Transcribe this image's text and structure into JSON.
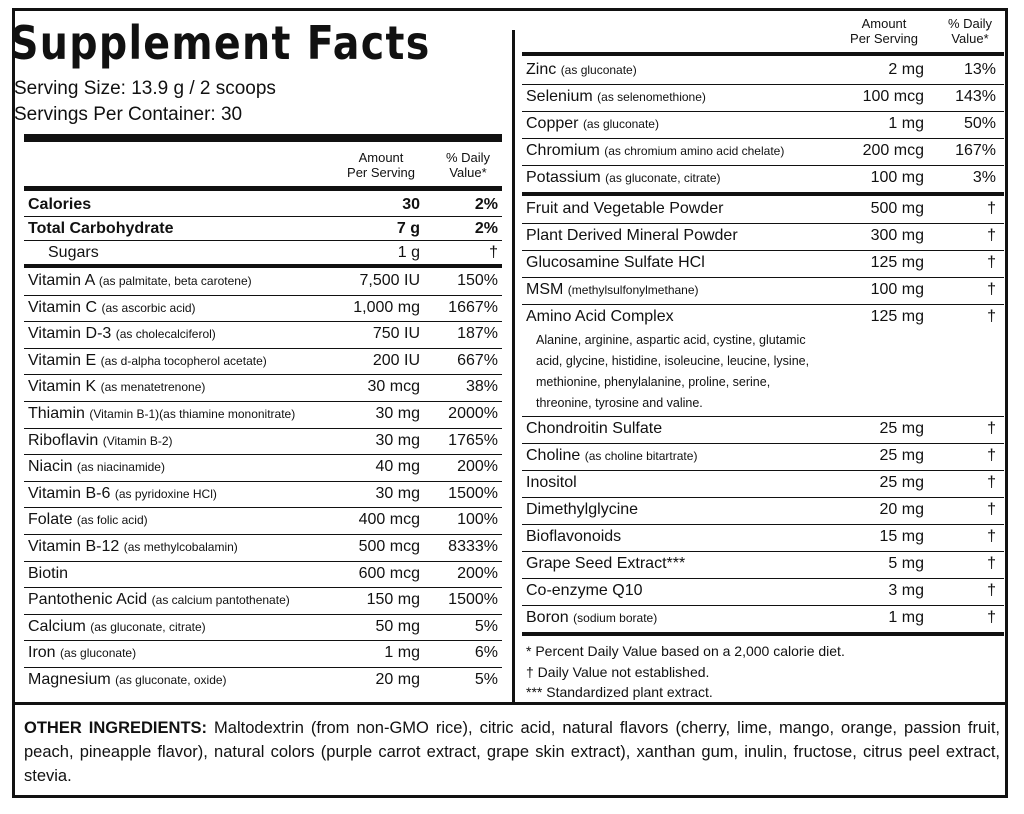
{
  "title": "Supplement Facts",
  "serving_size": "Serving Size: 13.9 g / 2 scoops",
  "servings_per_container": "Servings Per Container: 30",
  "header": {
    "amount": "Amount",
    "per_serving": "Per Serving",
    "daily": "% Daily",
    "value": "Value*"
  },
  "left_top": [
    {
      "name": "Calories",
      "detail": "",
      "amount": "30",
      "dv": "2%"
    },
    {
      "name": "Total Carbohydrate",
      "detail": "",
      "amount": "7 g",
      "dv": "2%"
    },
    {
      "name": "Sugars",
      "detail": "",
      "amount": "1 g",
      "dv": "†"
    }
  ],
  "left_rows": [
    {
      "name": "Vitamin A",
      "detail": "(as palmitate, beta carotene)",
      "amount": "7,500 IU",
      "dv": "150%"
    },
    {
      "name": "Vitamin C",
      "detail": "(as ascorbic acid)",
      "amount": "1,000 mg",
      "dv": "1667%"
    },
    {
      "name": "Vitamin D-3",
      "detail": "(as cholecalciferol)",
      "amount": "750 IU",
      "dv": "187%"
    },
    {
      "name": "Vitamin E",
      "detail": "(as d-alpha tocopherol acetate)",
      "amount": "200 IU",
      "dv": "667%"
    },
    {
      "name": "Vitamin K",
      "detail": "(as menatetrenone)",
      "amount": "30 mcg",
      "dv": "38%"
    },
    {
      "name": "Thiamin",
      "detail": "(Vitamin B-1)(as thiamine mononitrate)",
      "amount": "30 mg",
      "dv": "2000%"
    },
    {
      "name": "Riboflavin",
      "detail": "(Vitamin B-2)",
      "amount": "30 mg",
      "dv": "1765%"
    },
    {
      "name": "Niacin",
      "detail": "(as niacinamide)",
      "amount": "40 mg",
      "dv": "200%"
    },
    {
      "name": "Vitamin B-6",
      "detail": "(as pyridoxine HCl)",
      "amount": "30 mg",
      "dv": "1500%"
    },
    {
      "name": "Folate",
      "detail": "(as folic acid)",
      "amount": "400 mcg",
      "dv": "100%"
    },
    {
      "name": "Vitamin B-12",
      "detail": "(as methylcobalamin)",
      "amount": "500 mcg",
      "dv": "8333%"
    },
    {
      "name": "Biotin",
      "detail": "",
      "amount": "600 mcg",
      "dv": "200%"
    },
    {
      "name": "Pantothenic Acid",
      "detail": "(as calcium pantothenate)",
      "amount": "150 mg",
      "dv": "1500%"
    },
    {
      "name": "Calcium",
      "detail": "(as gluconate, citrate)",
      "amount": "50 mg",
      "dv": "5%"
    },
    {
      "name": "Iron",
      "detail": "(as gluconate)",
      "amount": "1 mg",
      "dv": "6%"
    },
    {
      "name": "Magnesium",
      "detail": "(as gluconate, oxide)",
      "amount": "20 mg",
      "dv": "5%"
    }
  ],
  "right_rows_a": [
    {
      "name": "Zinc",
      "detail": "(as gluconate)",
      "amount": "2 mg",
      "dv": "13%"
    },
    {
      "name": "Selenium",
      "detail": "(as selenomethione)",
      "amount": "100 mcg",
      "dv": "143%"
    },
    {
      "name": "Copper",
      "detail": "(as gluconate)",
      "amount": "1 mg",
      "dv": "50%"
    },
    {
      "name": "Chromium",
      "detail": "(as chromium amino acid chelate)",
      "amount": "200 mcg",
      "dv": "167%"
    },
    {
      "name": "Potassium",
      "detail": "(as gluconate, citrate)",
      "amount": "100 mg",
      "dv": "3%"
    }
  ],
  "right_rows_b": [
    {
      "name": "Fruit and Vegetable Powder",
      "detail": "",
      "amount": "500 mg",
      "dv": "†"
    },
    {
      "name": "Plant Derived Mineral Powder",
      "detail": "",
      "amount": "300 mg",
      "dv": "†"
    },
    {
      "name": "Glucosamine Sulfate HCl",
      "detail": "",
      "amount": "125 mg",
      "dv": "†"
    },
    {
      "name": "MSM",
      "detail": "(methylsulfonylmethane)",
      "amount": "100 mg",
      "dv": "†"
    }
  ],
  "amino": {
    "name": "Amino Acid Complex",
    "amount": "125 mg",
    "dv": "†",
    "lines": [
      "Alanine, arginine, aspartic acid, cystine, glutamic",
      "acid, glycine, histidine, isoleucine, leucine, lysine,",
      "methionine, phenylalanine, proline, serine,",
      "threonine, tyrosine and valine."
    ]
  },
  "right_rows_c": [
    {
      "name": "Chondroitin Sulfate",
      "detail": "",
      "amount": "25 mg",
      "dv": "†"
    },
    {
      "name": "Choline",
      "detail": "(as choline bitartrate)",
      "amount": "25 mg",
      "dv": "†"
    },
    {
      "name": "Inositol",
      "detail": "",
      "amount": "25 mg",
      "dv": "†"
    },
    {
      "name": "Dimethylglycine",
      "detail": "",
      "amount": "20 mg",
      "dv": "†"
    },
    {
      "name": "Bioflavonoids",
      "detail": "",
      "amount": "15 mg",
      "dv": "†"
    },
    {
      "name": "Grape Seed Extract***",
      "detail": "",
      "amount": "5 mg",
      "dv": "†"
    },
    {
      "name": "Co-enzyme Q10",
      "detail": "",
      "amount": "3 mg",
      "dv": "†"
    },
    {
      "name": "Boron",
      "detail": "(sodium borate)",
      "amount": "1 mg",
      "dv": "†"
    }
  ],
  "footnotes": [
    "* Percent Daily Value based on a 2,000 calorie diet.",
    "† Daily Value not established.",
    "*** Standardized plant extract."
  ],
  "other_label": "OTHER INGREDIENTS:",
  "other_text": " Maltodextrin (from non-GMO rice), citric acid, natural flavors (cherry, lime, mango, orange, passion fruit, peach, pineapple flavor), natural colors (purple carrot extract, grape skin extract), xanthan gum, inulin, fructose, citrus peel extract, stevia."
}
